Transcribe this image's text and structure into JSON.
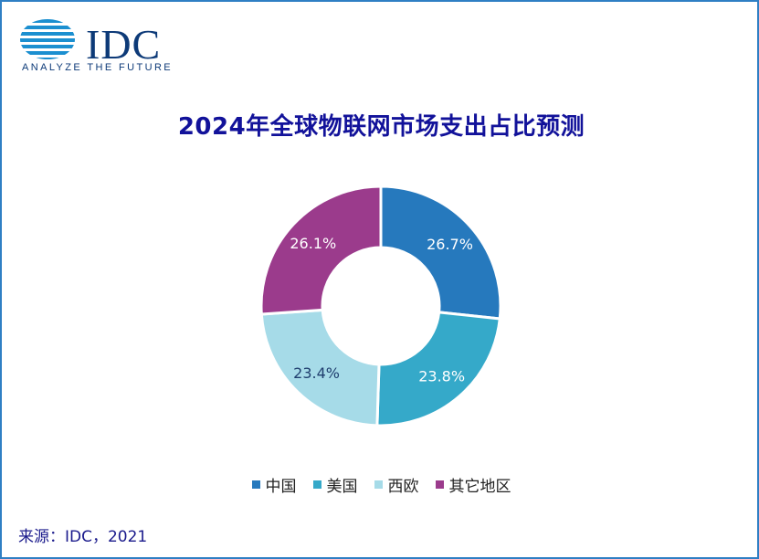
{
  "logo": {
    "name": "IDC",
    "tagline": "ANALYZE THE FUTURE"
  },
  "source": "来源：IDC，2021",
  "chart_data": {
    "type": "pie",
    "variant": "donut",
    "title": "2024年全球物联网市场支出占比预测",
    "categories": [
      "中国",
      "美国",
      "西欧",
      "其它地区"
    ],
    "values": [
      26.7,
      23.8,
      23.4,
      26.1
    ],
    "value_labels": [
      "26.7%",
      "23.8%",
      "23.4%",
      "26.1%"
    ],
    "unit": "%",
    "colors": [
      "#2679bd",
      "#35a9c9",
      "#a6dbe8",
      "#9b3b8c"
    ],
    "label_colors": [
      "#ffffff",
      "#ffffff",
      "#1f3e6e",
      "#ffffff"
    ],
    "legend_position": "bottom",
    "start_angle_deg": 0,
    "direction": "clockwise"
  }
}
